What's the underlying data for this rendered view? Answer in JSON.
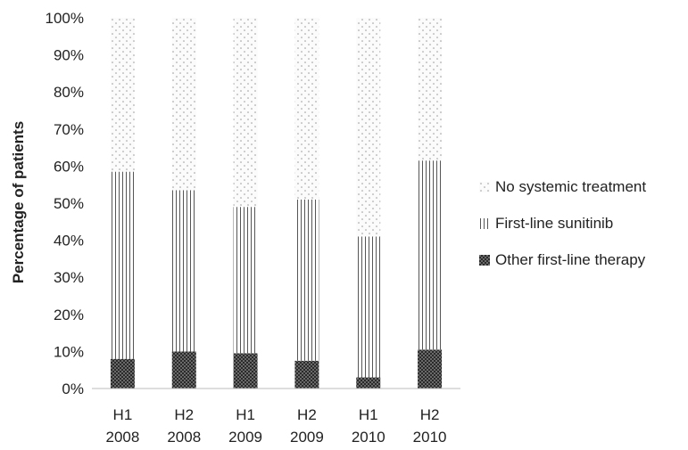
{
  "chart_data": {
    "type": "bar",
    "stacked": true,
    "categories": [
      [
        "H1",
        "2008"
      ],
      [
        "H2",
        "2008"
      ],
      [
        "H1",
        "2009"
      ],
      [
        "H2",
        "2009"
      ],
      [
        "H1",
        "2010"
      ],
      [
        "H2",
        "2010"
      ]
    ],
    "series": [
      {
        "name": "Other first-line therapy",
        "values": [
          8,
          10,
          9.5,
          7.5,
          3,
          10.5
        ],
        "pattern": "dark-checker",
        "color": "#3a3a3a"
      },
      {
        "name": "First-line sunitinib",
        "values": [
          50.5,
          43.5,
          39.5,
          43.5,
          38,
          51
        ],
        "pattern": "vertical-lines",
        "color": "#666666"
      },
      {
        "name": "No systemic treatment",
        "values": [
          41.5,
          46.5,
          51,
          49,
          59,
          38.5
        ],
        "pattern": "dots",
        "color": "#aaaaaa"
      }
    ],
    "ylabel": "Percentage of patients",
    "xlabel": "",
    "yticks": [
      "0%",
      "10%",
      "20%",
      "30%",
      "40%",
      "50%",
      "60%",
      "70%",
      "80%",
      "90%",
      "100%"
    ],
    "ylim": [
      0,
      100
    ],
    "grid": false,
    "legend_position": "right"
  }
}
